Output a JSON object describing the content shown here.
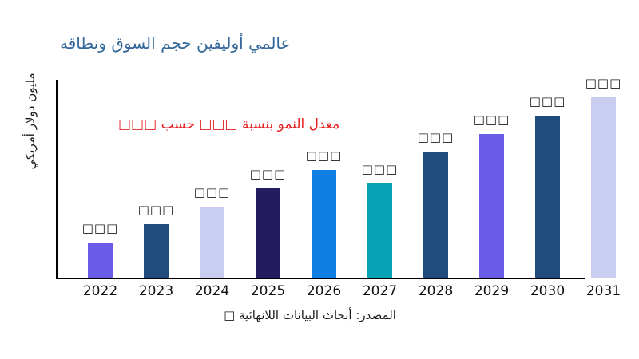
{
  "chart_data": {
    "type": "bar",
    "title": "عالمي أوليفين حجم السوق ونطاقه",
    "title_color": "#35689a",
    "ylabel": "مليون دولار أمريكي",
    "xlabel": "",
    "annotation": "معدل النمو بنسبة □□□ حسب □□□",
    "annotation_color": "#e42222",
    "source": "المصدر: أبحاث البيانات اللانهائية □",
    "categories": [
      "2022",
      "2023",
      "2024",
      "2025",
      "2026",
      "2027",
      "2028",
      "2029",
      "2030",
      "2031"
    ],
    "values": [
      45,
      68,
      90,
      113,
      136,
      119,
      159,
      181,
      204,
      227
    ],
    "value_unit": "relative (numeric labels shown only as placeholder boxes)",
    "value_labels": [
      "□□□",
      "□□□",
      "□□□",
      "□□□",
      "□□□",
      "□□□",
      "□□□",
      "□□□",
      "□□□",
      "□□□"
    ],
    "bar_colors": [
      "#6a5be8",
      "#1f4b7d",
      "#c9cdf0",
      "#231d60",
      "#0e7de4",
      "#07a2b4",
      "#1f4b7d",
      "#6a5be8",
      "#1f4b7d",
      "#c9cdf0"
    ],
    "axis_color": "#000000",
    "background_color": "#ffffff",
    "grid": false,
    "legend": "none"
  }
}
